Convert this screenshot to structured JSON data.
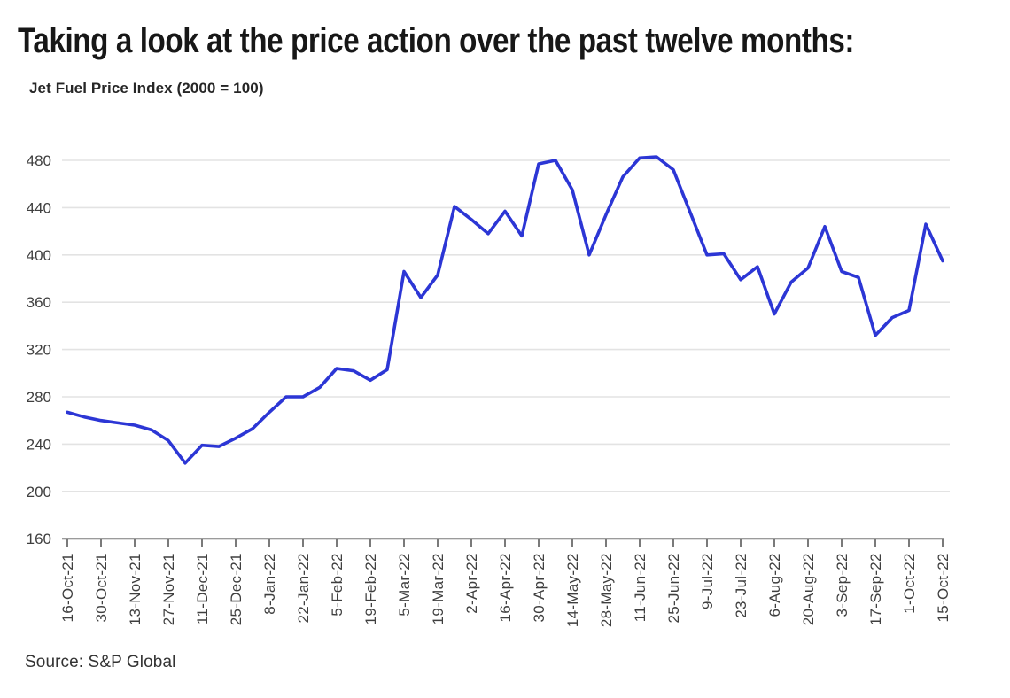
{
  "page": {
    "title": "Taking a look at the price action over the past twelve months:",
    "source": "Source: S&P Global"
  },
  "chart_data": {
    "type": "line",
    "title": "Jet Fuel Price Index (2000 = 100)",
    "series_name": "Jet Fuel Price Index",
    "x": [
      "16-Oct-21",
      "23-Oct-21",
      "30-Oct-21",
      "6-Nov-21",
      "13-Nov-21",
      "20-Nov-21",
      "27-Nov-21",
      "4-Dec-21",
      "11-Dec-21",
      "18-Dec-21",
      "25-Dec-21",
      "1-Jan-22",
      "8-Jan-22",
      "15-Jan-22",
      "22-Jan-22",
      "29-Jan-22",
      "5-Feb-22",
      "12-Feb-22",
      "19-Feb-22",
      "26-Feb-22",
      "5-Mar-22",
      "12-Mar-22",
      "19-Mar-22",
      "26-Mar-22",
      "2-Apr-22",
      "9-Apr-22",
      "16-Apr-22",
      "23-Apr-22",
      "30-Apr-22",
      "7-May-22",
      "14-May-22",
      "21-May-22",
      "28-May-22",
      "4-Jun-22",
      "11-Jun-22",
      "18-Jun-22",
      "25-Jun-22",
      "2-Jul-22",
      "9-Jul-22",
      "16-Jul-22",
      "23-Jul-22",
      "30-Jul-22",
      "6-Aug-22",
      "13-Aug-22",
      "20-Aug-22",
      "27-Aug-22",
      "3-Sep-22",
      "10-Sep-22",
      "17-Sep-22",
      "24-Sep-22",
      "1-Oct-22",
      "8-Oct-22",
      "15-Oct-22"
    ],
    "values": [
      267,
      263,
      260,
      258,
      256,
      252,
      243,
      224,
      239,
      238,
      245,
      253,
      267,
      280,
      280,
      288,
      304,
      302,
      294,
      303,
      386,
      364,
      383,
      441,
      430,
      418,
      437,
      416,
      477,
      480,
      455,
      400,
      434,
      466,
      482,
      483,
      472,
      436,
      400,
      401,
      379,
      390,
      350,
      377,
      389,
      424,
      386,
      381,
      332,
      347,
      353,
      426,
      395
    ],
    "x_tick_labels": [
      "16-Oct-21",
      "30-Oct-21",
      "13-Nov-21",
      "27-Nov-21",
      "11-Dec-21",
      "25-Dec-21",
      "8-Jan-22",
      "22-Jan-22",
      "5-Feb-22",
      "19-Feb-22",
      "5-Mar-22",
      "19-Mar-22",
      "2-Apr-22",
      "16-Apr-22",
      "30-Apr-22",
      "14-May-22",
      "28-May-22",
      "11-Jun-22",
      "25-Jun-22",
      "9-Jul-22",
      "23-Jul-22",
      "6-Aug-22",
      "20-Aug-22",
      "3-Sep-22",
      "17-Sep-22",
      "1-Oct-22",
      "15-Oct-22"
    ],
    "x_tick_every": 2,
    "y_ticks": [
      160,
      200,
      240,
      280,
      320,
      360,
      400,
      440,
      480
    ],
    "ylim": [
      160,
      480
    ],
    "grid": "horizontal",
    "legend": "none",
    "line_color": "#2c36d5",
    "line_width": 3.6,
    "grid_color": "#e3e3e3",
    "axis_color": "#7a7a7a",
    "label_color": "#3f3f3f"
  }
}
